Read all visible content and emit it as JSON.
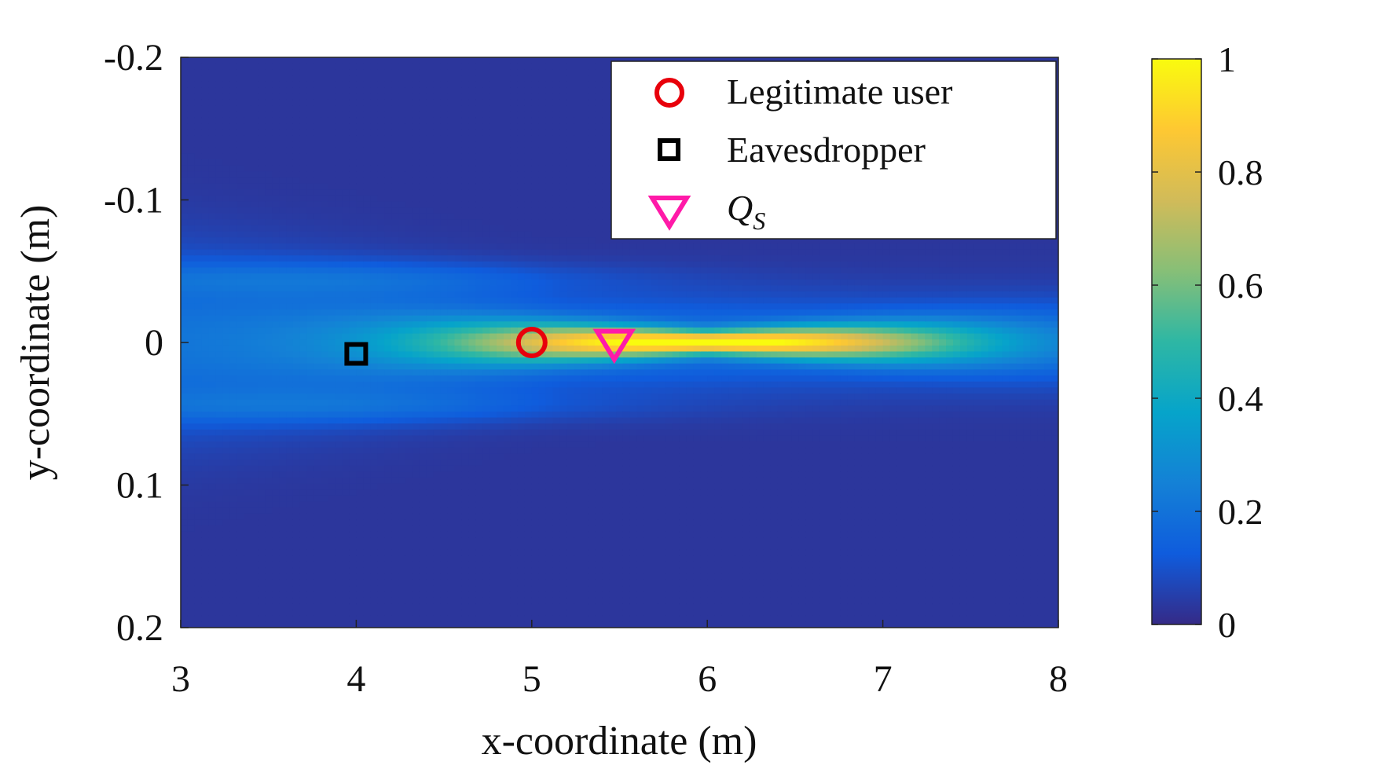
{
  "chart_data": {
    "type": "heatmap",
    "xlabel": "x-coordinate (m)",
    "ylabel": "y-coordinate (m)",
    "xlim": [
      3,
      8
    ],
    "ylim": [
      -0.2,
      0.2
    ],
    "y_axis_reversed": true,
    "xticks": [
      "3",
      "4",
      "5",
      "6",
      "7",
      "8"
    ],
    "xtick_values": [
      3,
      4,
      5,
      6,
      7,
      8
    ],
    "yticks": [
      "-0.2",
      "-0.1",
      "0",
      "0.1",
      "0.2"
    ],
    "ytick_values": [
      -0.2,
      -0.1,
      0,
      0.1,
      0.2
    ],
    "colorbar": {
      "range": [
        0,
        1
      ],
      "ticks": [
        "0",
        "0.2",
        "0.4",
        "0.6",
        "0.8",
        "1"
      ],
      "tick_values": [
        0,
        0.2,
        0.4,
        0.6,
        0.8,
        1
      ],
      "colormap": "parula",
      "colors": [
        "#352a87",
        "#0f5cdd",
        "#1481d6",
        "#06a4ca",
        "#2eb7a4",
        "#87bf77",
        "#d1bb59",
        "#fec832",
        "#f9fb0e"
      ]
    },
    "field": {
      "description_values": "normalized intensity beam focused along y = 0",
      "peak_x": 6.0,
      "peak_y": 0.0,
      "peak_value": 0.85,
      "background_value": 0.03
    },
    "series": [
      {
        "name": "Legitimate user",
        "marker": "circle",
        "color": "#e8000b",
        "x": 5.0,
        "y": 0.0
      },
      {
        "name": "Eavesdropper",
        "marker": "square",
        "color": "#000000",
        "x": 4.0,
        "y": 0.008
      },
      {
        "name": "Q",
        "name_subscript": "S",
        "marker": "triangle-down",
        "color": "#ff1aa8",
        "x": 5.47,
        "y": 0.002
      }
    ],
    "legend": {
      "position": "top-right"
    }
  }
}
